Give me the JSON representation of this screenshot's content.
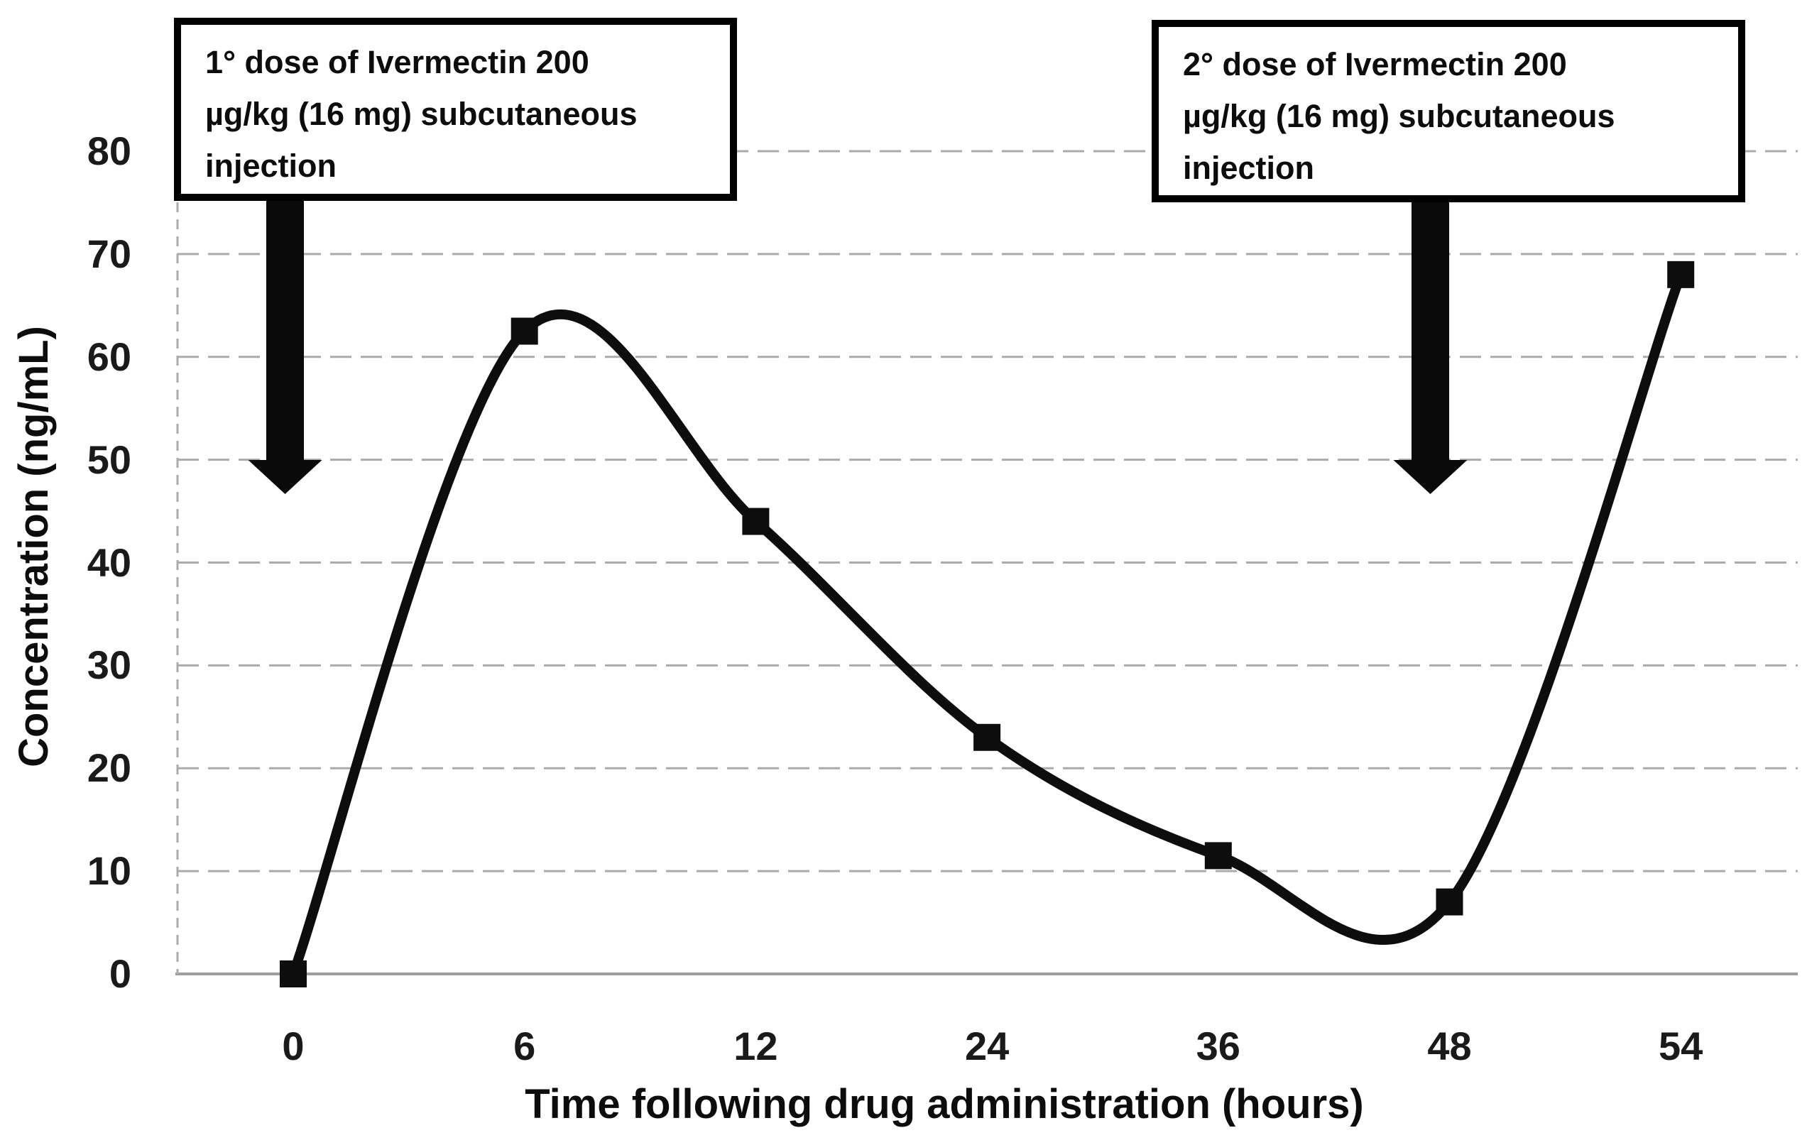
{
  "chart_data": {
    "type": "line",
    "categories": [
      "0",
      "6",
      "12",
      "24",
      "36",
      "48",
      "54"
    ],
    "values": [
      0,
      62.5,
      44,
      23,
      11.5,
      7,
      68
    ],
    "xlabel": "Time following drug administration (hours)",
    "ylabel": "Concentration (ng/mL)",
    "y_ticks": [
      0,
      10,
      20,
      30,
      40,
      50,
      60,
      70,
      80
    ],
    "ylim": [
      0,
      80
    ],
    "grid": "horizontal dashed light gray",
    "legend_position": "none",
    "line_style": "smoothed thick black line with square markers",
    "marker": "square"
  },
  "annotations": [
    {
      "lines": [
        "1° dose of Ivermectin 200",
        "µg/kg (16 mg) subcutaneous",
        "injection"
      ],
      "arrow_points_to_hour": "0"
    },
    {
      "lines": [
        "2° dose of Ivermectin 200",
        "µg/kg (16 mg) subcutaneous",
        "injection"
      ],
      "arrow_points_to_hour": "48"
    }
  ],
  "colors": {
    "background": "#ffffff",
    "line": "#0d0d0d",
    "marker": "#0d0d0d",
    "gridline": "#ababab",
    "baseline": "#9e9e9e",
    "text": "#0c0c0c",
    "annotation_border": "#000000",
    "arrow": "#0a0a0a"
  }
}
